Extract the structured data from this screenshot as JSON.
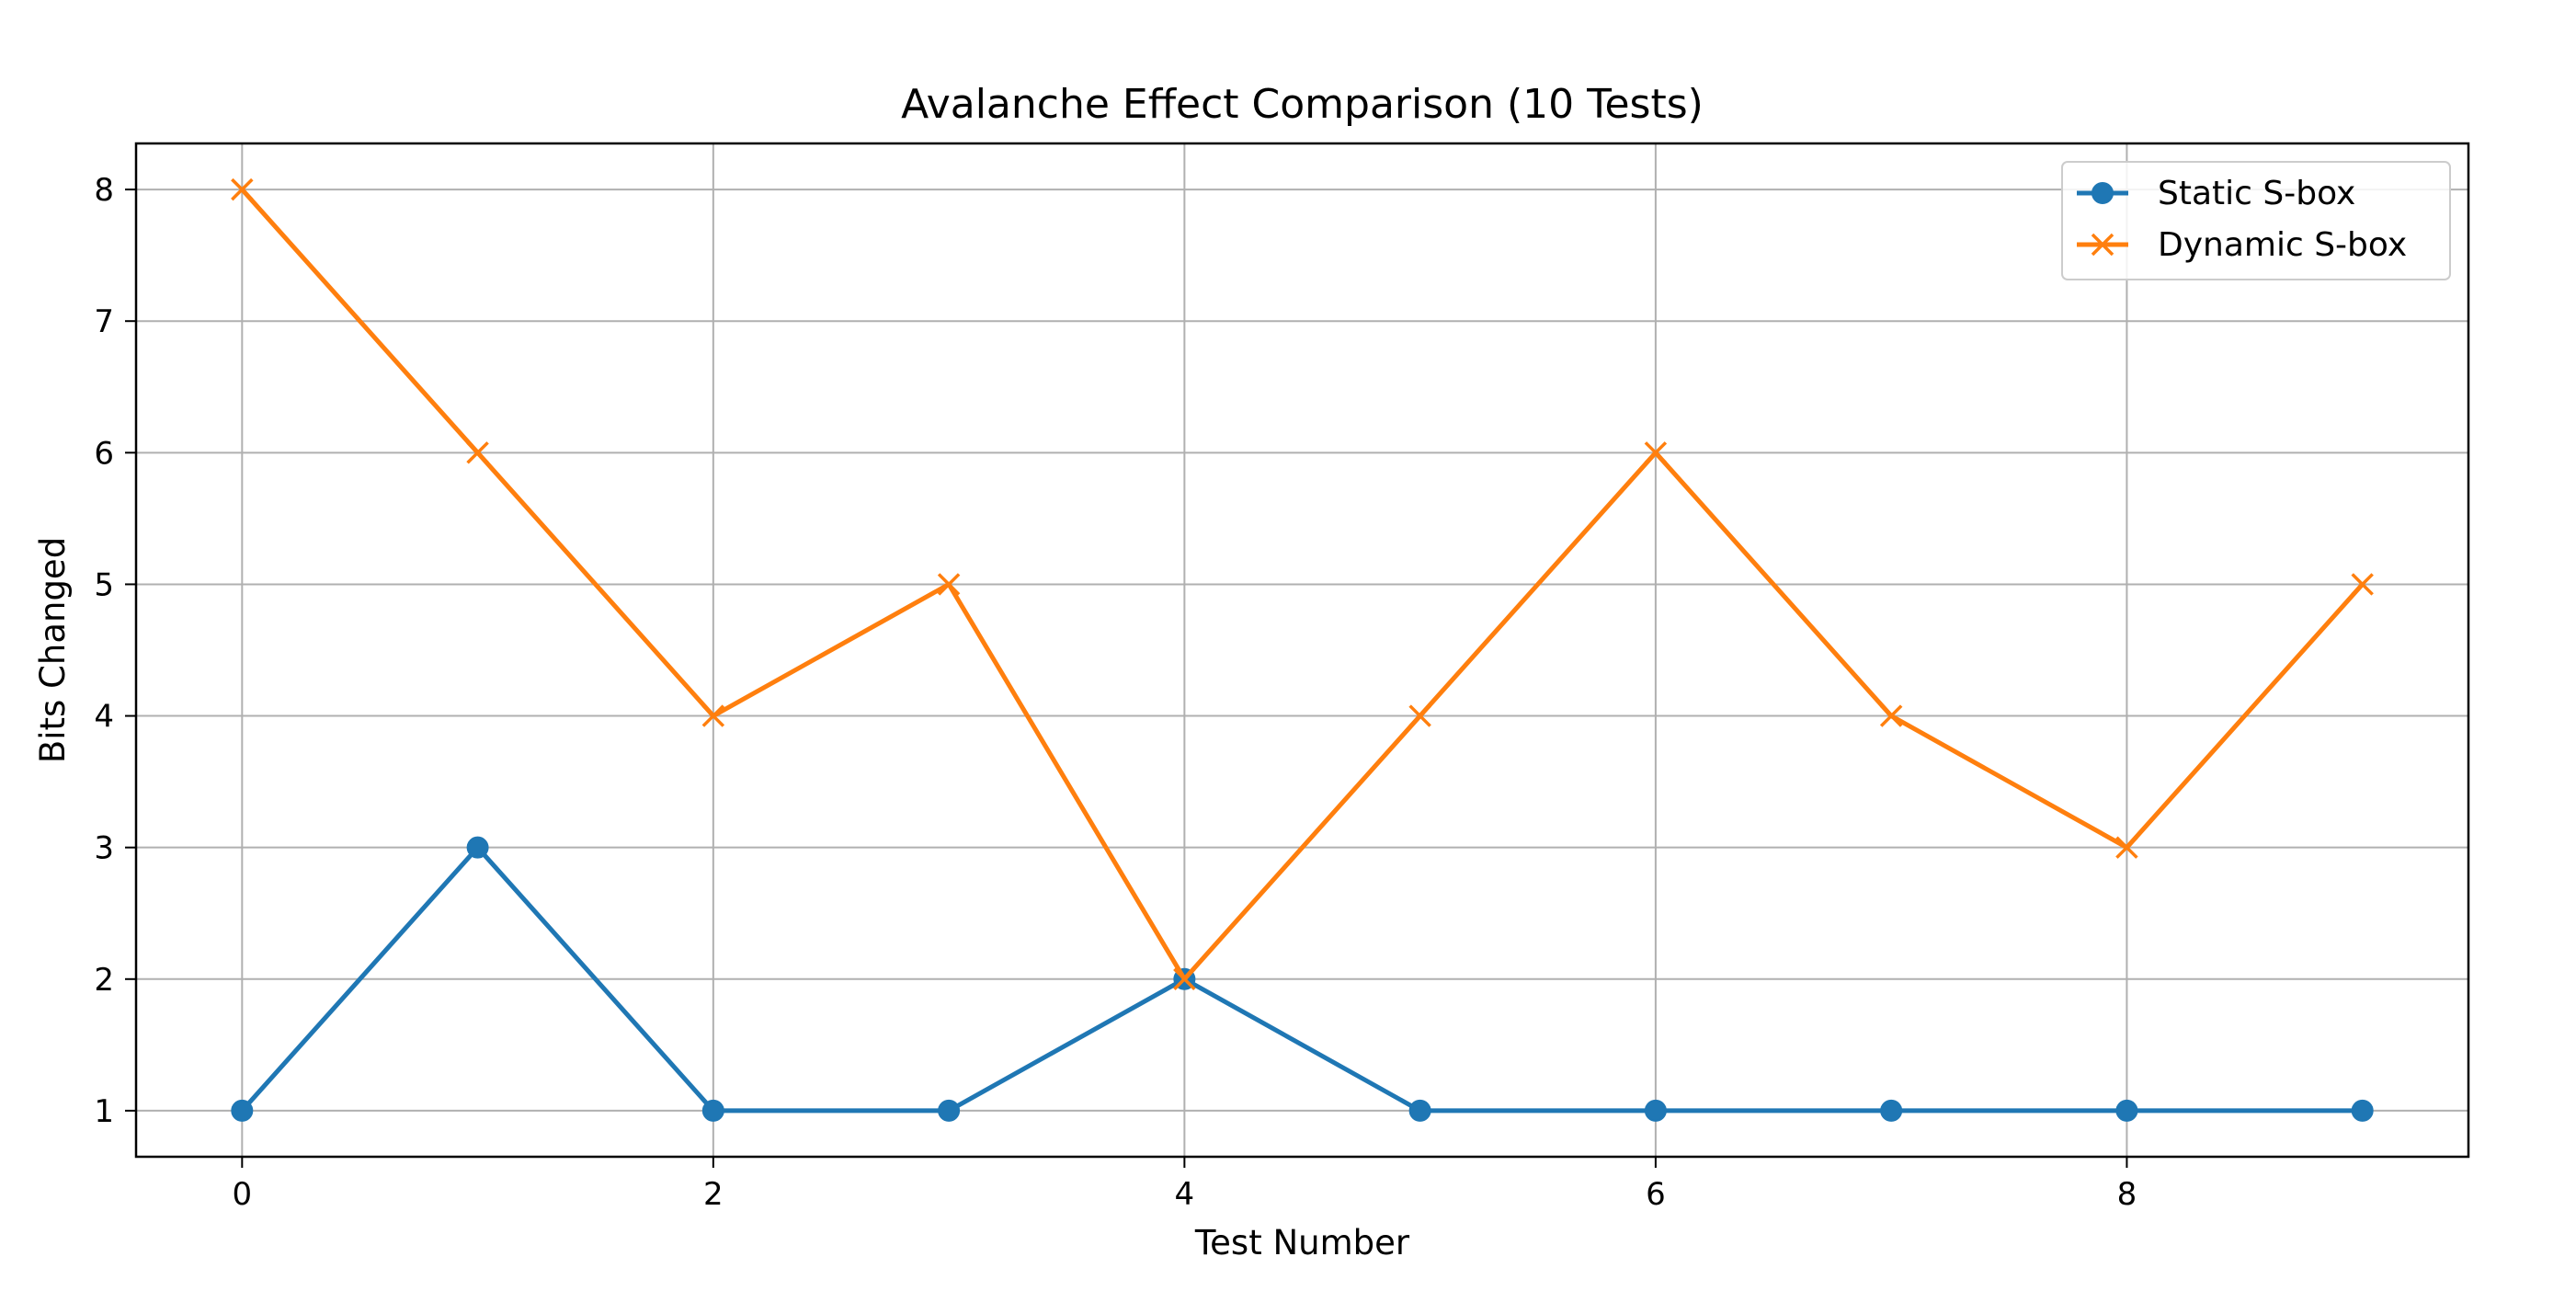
{
  "chart_data": {
    "type": "line",
    "title": "Avalanche Effect Comparison (10 Tests)",
    "xlabel": "Test Number",
    "ylabel": "Bits Changed",
    "x": [
      0,
      1,
      2,
      3,
      4,
      5,
      6,
      7,
      8,
      9
    ],
    "xlim": [
      -0.45,
      9.45
    ],
    "ylim": [
      0.65,
      8.35
    ],
    "xticks": [
      0,
      2,
      4,
      6,
      8
    ],
    "yticks": [
      1,
      2,
      3,
      4,
      5,
      6,
      7,
      8
    ],
    "grid": true,
    "legend_position": "top-right",
    "series": [
      {
        "name": "Static S-box",
        "color": "#1f77b4",
        "marker": "circle",
        "values": [
          1,
          3,
          1,
          1,
          2,
          1,
          1,
          1,
          1,
          1
        ]
      },
      {
        "name": "Dynamic S-box",
        "color": "#ff7f0e",
        "marker": "x",
        "values": [
          8,
          6,
          4,
          5,
          2,
          4,
          6,
          4,
          3,
          5
        ]
      }
    ]
  }
}
